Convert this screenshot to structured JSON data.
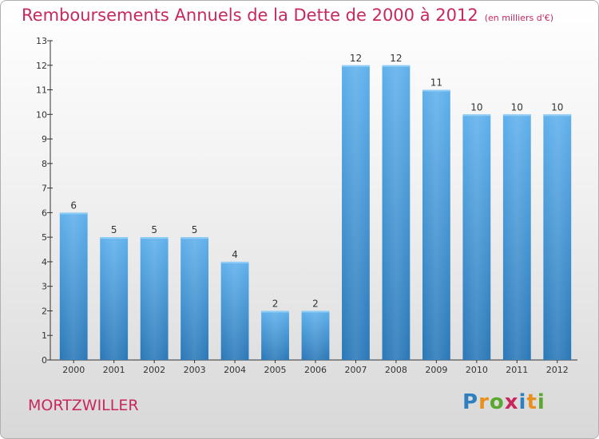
{
  "title": "Remboursements Annuels de la Dette de 2000 à 2012",
  "subtitle": "(en milliers d'€)",
  "location": "MORTZWILLER",
  "logo": {
    "text": "Proxiti",
    "colors": [
      "#2e7fc0",
      "#e8901c",
      "#5aa82e",
      "#c8285c",
      "#2e7fc0",
      "#e8901c",
      "#5aa82e"
    ]
  },
  "colors": {
    "title": "#c8285c",
    "bar_top": "#5fb0ec",
    "bar_bottom": "#2a78b8"
  },
  "chart_data": {
    "type": "bar",
    "categories": [
      "2000",
      "2001",
      "2002",
      "2003",
      "2004",
      "2005",
      "2006",
      "2007",
      "2008",
      "2009",
      "2010",
      "2011",
      "2012"
    ],
    "values": [
      6,
      5,
      5,
      5,
      4,
      2,
      2,
      12,
      12,
      11,
      10,
      10,
      10
    ],
    "title": "Remboursements Annuels de la Dette de 2000 à 2012",
    "subtitle": "(en milliers d'€)",
    "xlabel": "",
    "ylabel": "",
    "ylim": [
      0,
      13
    ],
    "yticks": [
      "0",
      "1",
      "2",
      "3",
      "4",
      "5",
      "6",
      "7",
      "8",
      "9",
      "10",
      "11",
      "12",
      "13"
    ],
    "grid": false,
    "data_labels": true
  }
}
